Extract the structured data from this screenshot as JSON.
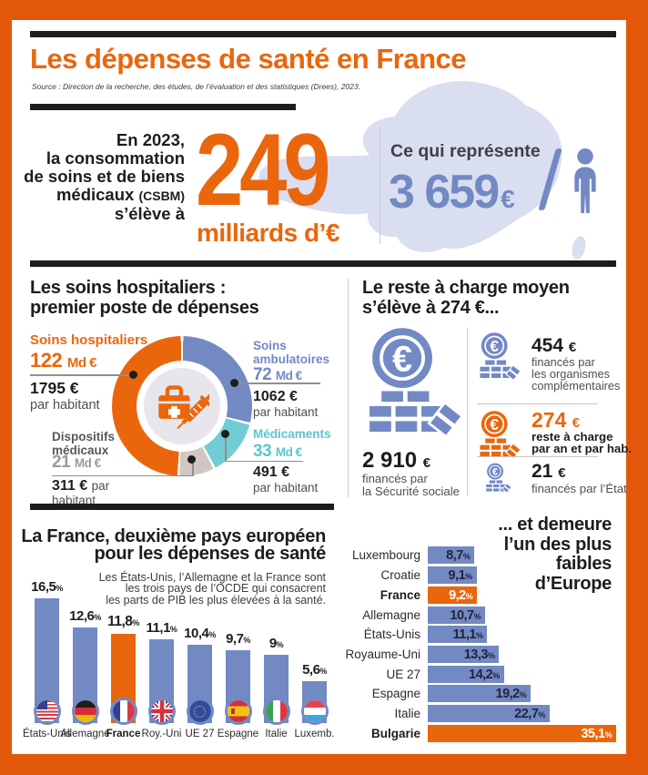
{
  "colors": {
    "frame_orange": "#e3570b",
    "accent_orange": "#ea660d",
    "slate_blue": "#7289c4",
    "teal": "#72ccd4",
    "taupe": "#d1c6c1",
    "ink": "#1d1d1b",
    "gray_text": "#4f4f51",
    "map_lavender": "#d9def1"
  },
  "header": {
    "title": "Les dépenses de santé en France",
    "source": "Source : Direction de la recherche, des études, de l’évaluation et des statistiques (Drees), 2023."
  },
  "hero": {
    "intro_line1": "En 2023,",
    "intro_line2": "la consommation",
    "intro_line3": "de soins et de biens",
    "intro_line4": "médicaux",
    "intro_line4_abbr": "(CSBM)",
    "intro_line5": "s’élève à",
    "big_value": "249",
    "big_unit": "milliards d’€",
    "right_heading": "Ce qui représente",
    "per_capita_value": "3 659",
    "per_capita_currency": "€",
    "per_capita_label": "par habitant"
  },
  "hospital": {
    "title_line1": "Les soins hospitaliers :",
    "title_line2": "premier poste de dépenses"
  },
  "remainder": {
    "title_line1": "Le reste à charge moyen",
    "title_line2": "s’élève à 274 €...",
    "main_value": "2 910",
    "main_currency": "€",
    "main_line1": "financés par",
    "main_line2": "la Sécurité sociale",
    "items": [
      {
        "value": "454",
        "currency": "€",
        "line1": "financés par",
        "line2": "les organismes",
        "line3": "complémentaires"
      },
      {
        "value": "274",
        "currency": "€",
        "line1": "reste à charge",
        "line2": "par an et par hab."
      },
      {
        "value": "21",
        "currency": "€",
        "line1": "financés par l’État"
      }
    ]
  },
  "europe_top": {
    "title_line1": "La France, deuxième pays européen",
    "title_line2": "pour les dépenses de santé",
    "note_line1": "Les États-Unis, l’Allemagne et la France sont",
    "note_line2": "les trois pays de l’OCDE qui consacrent",
    "note_line3": "les parts de PIB les plus élevées à la santé."
  },
  "europe_low": {
    "title_line1": "... et demeure",
    "title_line2": "l’un des plus",
    "title_line3": "faibles",
    "title_line4": "d’Europe"
  },
  "misc": {
    "pct": "%"
  },
  "chart_data": [
    {
      "id": "csbm-breakdown",
      "type": "pie",
      "title": "Les soins hospitaliers : premier poste de dépenses",
      "unit": "Md €",
      "segments": [
        {
          "label": "Soins hospitaliers",
          "value": 122,
          "value_label": "122",
          "per_capita": "1795 €",
          "per_capita_note": "par habitant",
          "color": "#ea660d",
          "label_color": "#ea660d",
          "value_color": "#ea660d"
        },
        {
          "label": "Soins ambulatoires",
          "value": 72,
          "value_label": "72",
          "per_capita": "1062 €",
          "per_capita_note": "par habitant",
          "color": "#7289c4",
          "label_color": "#7289c4",
          "value_color": "#7289c4"
        },
        {
          "label": "Médicaments",
          "value": 33,
          "value_label": "33",
          "per_capita": "491 €",
          "per_capita_note": "par habitant",
          "color": "#72ccd4",
          "label_color": "#5dc4ce",
          "value_color": "#5dc4ce"
        },
        {
          "label": "Dispositifs médicaux",
          "value": 21,
          "value_label": "21",
          "per_capita": "311 €",
          "per_capita_note": "par habitant",
          "color": "#d1c6c1",
          "label_color": "#58585a",
          "value_color": "#9a9a9d"
        }
      ]
    },
    {
      "id": "health-spending-share-of-gdp",
      "type": "bar",
      "title": "La France, deuxième pays européen pour les dépenses de santé",
      "note": "Les États-Unis, l’Allemagne et la France sont les trois pays de l’OCDE qui consacrent les parts de PIB les plus élevées à la santé.",
      "unit": "%",
      "categories": [
        "États-Unis",
        "Allemagne",
        "France",
        "Roy.-Uni",
        "UE 27",
        "Espagne",
        "Italie",
        "Luxemb."
      ],
      "values": [
        16.5,
        12.6,
        11.8,
        11.1,
        10.4,
        9.7,
        9,
        5.6
      ],
      "value_labels": [
        "16,5",
        "12,6",
        "11,8",
        "11,1",
        "10,4",
        "9,7",
        "9",
        "5,6"
      ],
      "highlight_index": 2,
      "flags": [
        "us",
        "de",
        "fr",
        "gb",
        "eu",
        "es",
        "it",
        "lu"
      ]
    },
    {
      "id": "out-of-pocket-share",
      "type": "bar-horizontal",
      "title": "... et demeure l’un des plus faibles d’Europe",
      "unit": "%",
      "categories": [
        "Luxembourg",
        "Croatie",
        "France",
        "Allemagne",
        "États-Unis",
        "Royaume-Uni",
        "UE 27",
        "Espagne",
        "Italie",
        "Bulgarie"
      ],
      "values": [
        8.7,
        9.1,
        9.2,
        10.7,
        11.1,
        13.3,
        14.2,
        19.2,
        22.7,
        35.1
      ],
      "value_labels": [
        "8,7",
        "9,1",
        "9,2",
        "10,7",
        "11,1",
        "13,3",
        "14,2",
        "19,2",
        "22,7",
        "35,1"
      ],
      "highlight_indices": [
        2,
        9
      ]
    }
  ]
}
